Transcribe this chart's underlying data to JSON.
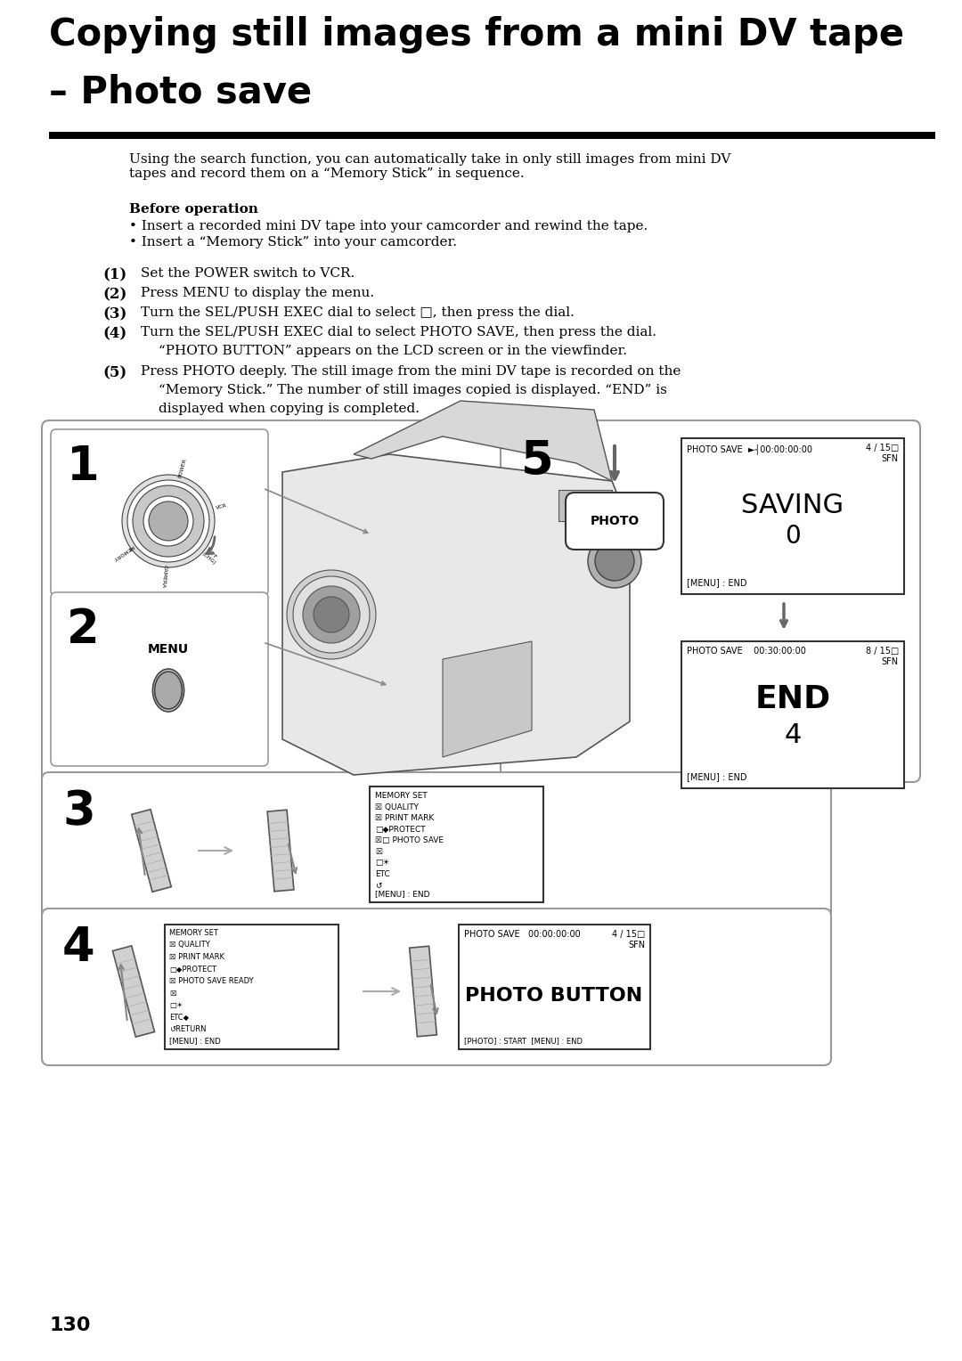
{
  "title_line1": "Copying still images from a mini DV tape",
  "title_line2": "– Photo save",
  "bg_color": "#ffffff",
  "page_number": "130",
  "intro_text": "Using the search function, you can automatically take in only still images from mini DV\ntapes and record them on a “Memory Stick” in sequence.",
  "before_op_title": "Before operation",
  "before_op_b1": "Insert a recorded mini DV tape into your camcorder and rewind the tape.",
  "before_op_b2": "Insert a “Memory Stick” into your camcorder.",
  "step1": "Set the POWER switch to VCR.",
  "step2": "Press MENU to display the menu.",
  "step3": "Turn the SEL/PUSH EXEC dial to select □, then press the dial.",
  "step4a": "Turn the SEL/PUSH EXEC dial to select PHOTO SAVE, then press the dial.",
  "step4b": "“PHOTO BUTTON” appears on the LCD screen or in the viewfinder.",
  "step5a": "Press PHOTO deeply. The still image from the mini DV tape is recorded on the",
  "step5b": "“Memory Stick.” The number of still images copied is displayed. “END” is",
  "step5c": "displayed when copying is completed.",
  "sc1_top": "PHOTO SAVE  ►─┤00:00:00:00",
  "sc1_right": "4 / 15□\nSFN",
  "sc1_main1": "SAVING",
  "sc1_main2": "0",
  "sc1_bot": "[MENU] : END",
  "sc2_top": "PHOTO SAVE      00:30:00:00",
  "sc2_right": "8 / 15□\nSFN",
  "sc2_main1": "END",
  "sc2_main2": "4",
  "sc2_bot": "[MENU] : END",
  "menu3_items": [
    "MEMORY SET",
    "  QUALITY",
    "  PRINT MARK",
    "  PROTECT",
    "  PHOTO SAVE",
    "",
    "",
    "ETC",
    ""
  ],
  "menu3_bot": "[MENU] : END",
  "menu4a_items": [
    "MEMORY SET",
    "  QUALITY",
    "  PRINT MARK",
    "  PROTECT",
    "  PHOTO SAVE READY",
    "",
    "",
    "ETC",
    "  RETURN"
  ],
  "menu4a_bot": "[MENU] : END",
  "menu4b_top": "PHOTO SAVE    00:00:00:00",
  "menu4b_right": "4 / 15□\nSFN",
  "menu4b_main": "PHOTO BUTTON",
  "menu4b_bot": "[PHOTO] : START  [MENU] : END",
  "gray": "#888888",
  "lightgray": "#cccccc",
  "darkgray": "#555555"
}
